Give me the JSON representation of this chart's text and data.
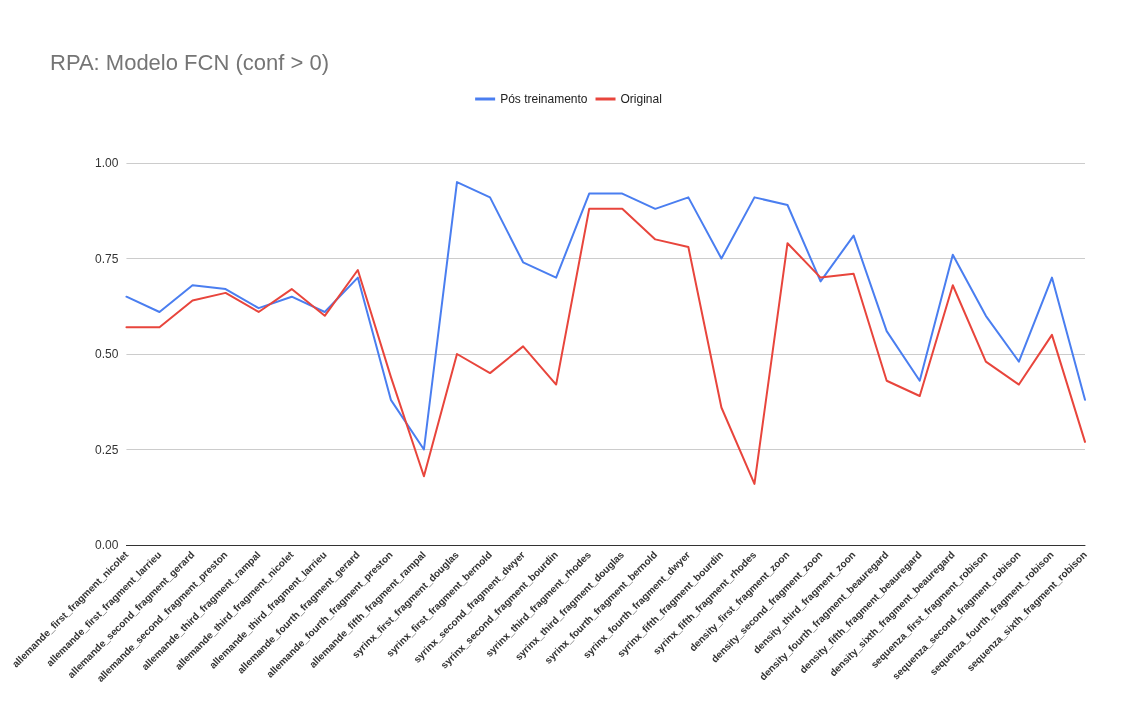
{
  "chart_data": {
    "type": "line",
    "title": "RPA: Modelo FCN (conf > 0)",
    "legend": "top",
    "grid": "y",
    "marker": "none",
    "line_style": "solid",
    "categories": [
      "allemande_first_fragment_nicolet",
      "allemande_first_fragment_larrieu",
      "allemande_second_fragment_gerard",
      "allemande_second_fragment_preston",
      "allemande_third_fragment_rampal",
      "allemande_third_fragment_nicolet",
      "allemande_third_fragment_larrieu",
      "allemande_fourth_fragment_gerard",
      "allemande_fourth_fragment_preston",
      "allemande_fifth_fragment_rampal",
      "syrinx_first_fragment_douglas",
      "syrinx_first_fragment_bernold",
      "syrinx_second_fragment_dwyer",
      "syrinx_second_fragment_bourdin",
      "syrinx_third_fragment_rhodes",
      "syrinx_third_fragment_douglas",
      "syrinx_fourth_fragment_bernold",
      "syrinx_fourth_fragment_dwyer",
      "syrinx_fifth_fragment_bourdin",
      "syrinx_fifth_fragment_rhodes",
      "density_first_fragment_zoon",
      "density_second_fragment_zoon",
      "density_third_fragment_zoon",
      "density_fourth_fragment_beauregard",
      "density_fifth_fragment_beauregard",
      "density_sixth_fragment_beauregard",
      "sequenza_first_fragment_robison",
      "sequenza_second_fragment_robison",
      "sequenza_fourth_fragment_robison",
      "sequenza_sixth_fragment_robison"
    ],
    "series": [
      {
        "name": "Pós treinamento",
        "color": "#4a7ef0",
        "values": [
          0.65,
          0.61,
          0.68,
          0.67,
          0.62,
          0.65,
          0.61,
          0.7,
          0.38,
          0.25,
          0.95,
          0.91,
          0.74,
          0.7,
          0.92,
          0.92,
          0.88,
          0.91,
          0.75,
          0.91,
          0.89,
          0.69,
          0.81,
          0.56,
          0.43,
          0.76,
          0.6,
          0.48,
          0.7,
          0.38
        ]
      },
      {
        "name": "Original",
        "color": "#e8453c",
        "values": [
          0.57,
          0.57,
          0.64,
          0.66,
          0.61,
          0.67,
          0.6,
          0.72,
          0.44,
          0.18,
          0.5,
          0.45,
          0.52,
          0.42,
          0.88,
          0.88,
          0.8,
          0.78,
          0.36,
          0.16,
          0.79,
          0.7,
          0.71,
          0.43,
          0.39,
          0.68,
          0.48,
          0.42,
          0.55,
          0.27
        ]
      }
    ],
    "ylim": [
      0,
      1
    ],
    "yticks": [
      {
        "value": 0,
        "label": "0.00"
      },
      {
        "value": 0.25,
        "label": "0.25"
      },
      {
        "value": 0.5,
        "label": "0.50"
      },
      {
        "value": 0.75,
        "label": "0.75"
      },
      {
        "value": 1,
        "label": "1.00"
      }
    ]
  }
}
